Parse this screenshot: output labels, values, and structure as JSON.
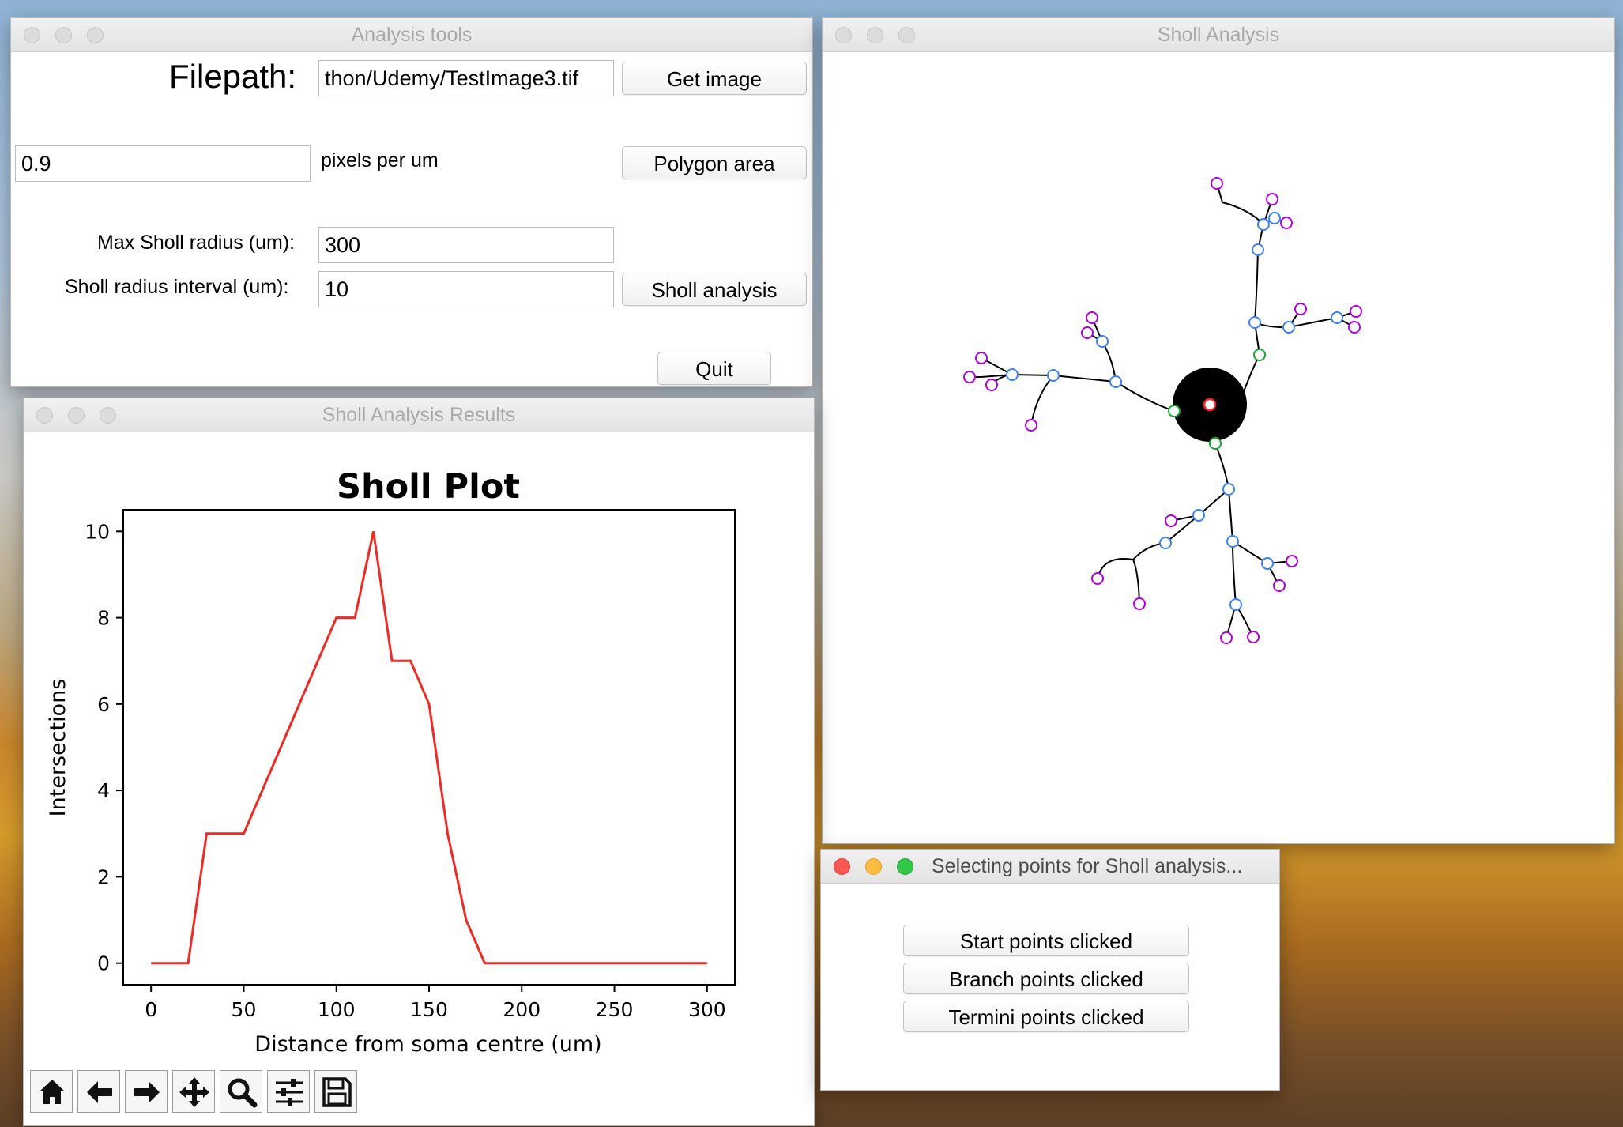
{
  "analysis_tools": {
    "title": "Analysis tools",
    "filepath_label": "Filepath:",
    "filepath_value": "thon/Udemy/TestImage3.tif",
    "get_image_label": "Get image",
    "scale_value": "0.9",
    "scale_unit_label": "pixels per um",
    "polygon_area_label": "Polygon area",
    "max_radius_label": "Max Sholl radius (um):",
    "max_radius_value": "300",
    "interval_label": "Sholl radius interval (um):",
    "interval_value": "10",
    "sholl_analysis_label": "Sholl analysis",
    "quit_label": "Quit"
  },
  "results_window": {
    "title": "Sholl Analysis Results",
    "toolbar": [
      "home-icon",
      "back-arrow-icon",
      "forward-arrow-icon",
      "pan-move-icon",
      "zoom-magnifier-icon",
      "configure-sliders-icon",
      "save-disk-icon"
    ]
  },
  "chart_data": {
    "type": "line",
    "title": "Sholl Plot",
    "xlabel": "Distance from soma centre (um)",
    "ylabel": "Intersections",
    "x": [
      0,
      10,
      20,
      30,
      40,
      50,
      60,
      70,
      80,
      90,
      100,
      110,
      120,
      130,
      140,
      150,
      160,
      170,
      180,
      190,
      200,
      210,
      220,
      230,
      240,
      250,
      260,
      270,
      280,
      290,
      300
    ],
    "series": [
      {
        "values": [
          0,
          0,
          0,
          3,
          3,
          3,
          4,
          5,
          6,
          7,
          8,
          8,
          10,
          7,
          7,
          6,
          3,
          1,
          0,
          0,
          0,
          0,
          0,
          0,
          0,
          0,
          0,
          0,
          0,
          0,
          0
        ],
        "color": "#ee2a24"
      }
    ],
    "xlim": [
      -15,
      315
    ],
    "ylim": [
      -0.5,
      10.5
    ],
    "xticks": [
      0,
      50,
      100,
      150,
      200,
      250,
      300
    ],
    "yticks": [
      0,
      2,
      4,
      6,
      8,
      10
    ],
    "grid": false
  },
  "sholl_window": {
    "title": "Sholl Analysis",
    "colors": {
      "soma": "#000000",
      "branch_point": "#3b82f6",
      "terminus_point": "#b000e0",
      "start_point": "#18a830",
      "centre_point": "#ff2020"
    }
  },
  "selecting_window": {
    "title": "Selecting points for Sholl analysis...",
    "buttons": [
      "Start points clicked",
      "Branch points clicked",
      "Termini points clicked"
    ]
  }
}
